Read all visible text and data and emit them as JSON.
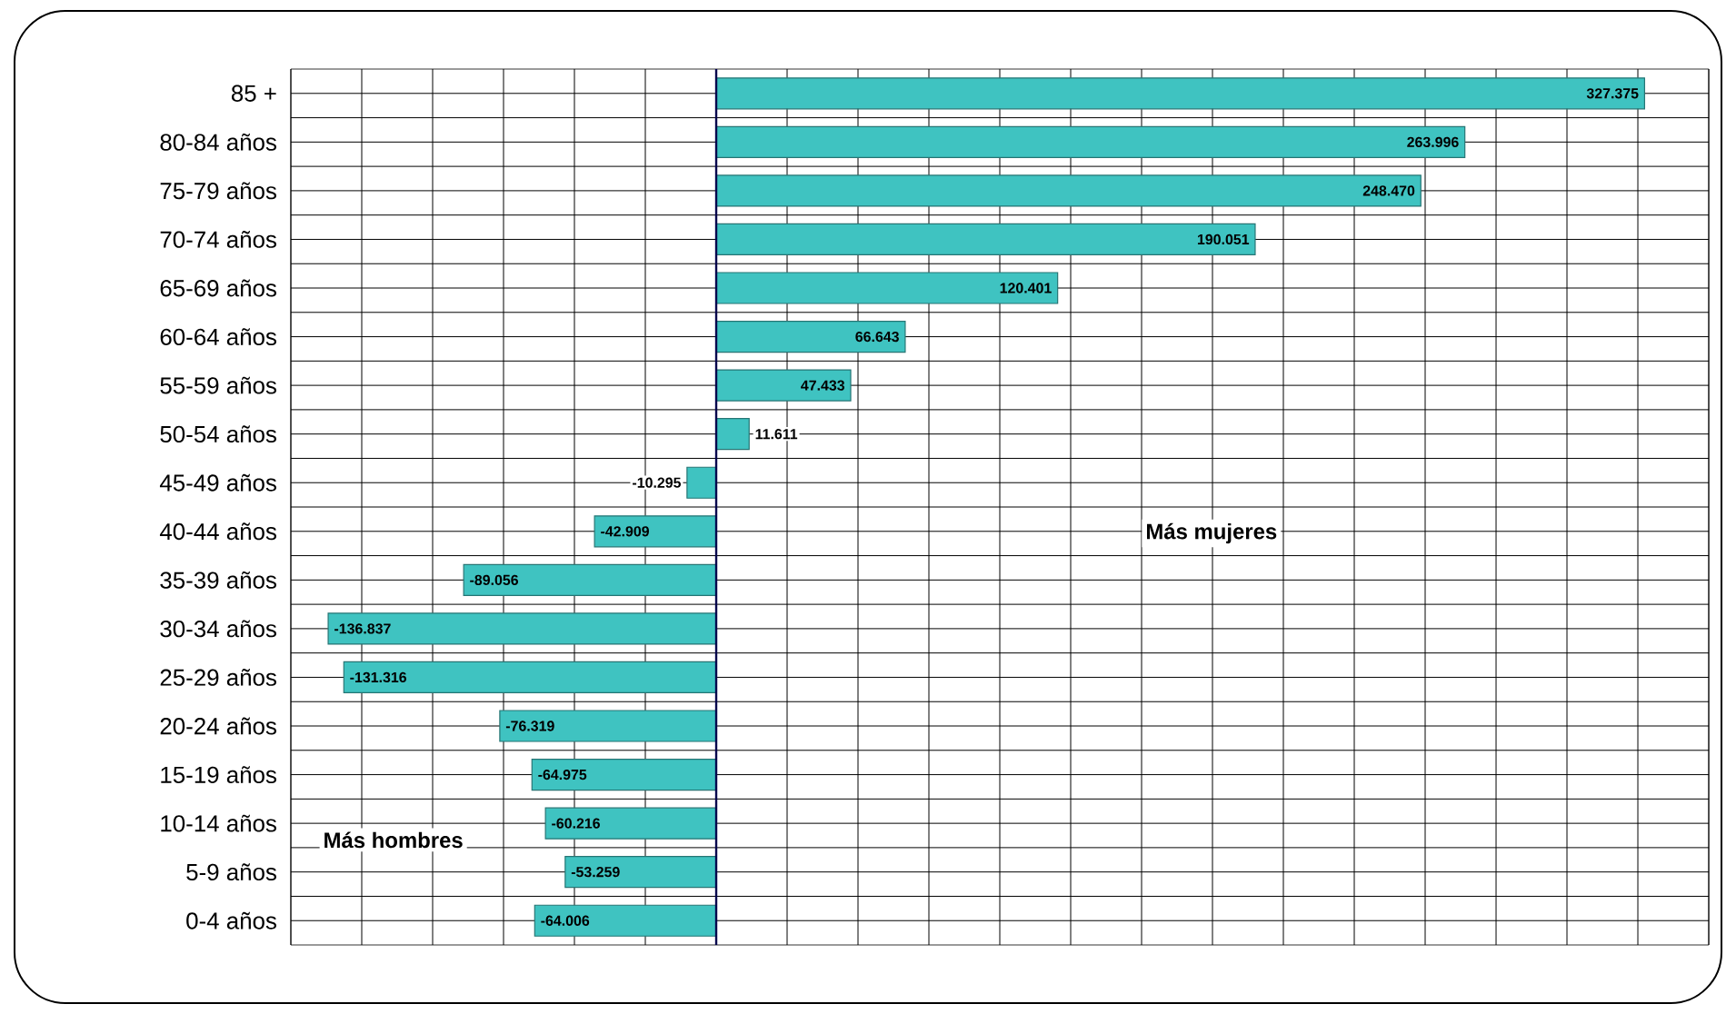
{
  "chart_data": {
    "type": "bar",
    "orientation": "horizontal",
    "categories": [
      "85 +",
      "80-84 años",
      "75-79 años",
      "70-74 años",
      "65-69 años",
      "60-64 años",
      "55-59 años",
      "50-54 años",
      "45-49 años",
      "40-44 años",
      "35-39 años",
      "30-34 años",
      "25-29 años",
      "20-24 años",
      "15-19 años",
      "10-14 años",
      "5-9 años",
      "0-4 años"
    ],
    "values": [
      327375,
      263996,
      248470,
      190051,
      120401,
      66643,
      47433,
      11611,
      -10295,
      -42909,
      -89056,
      -136837,
      -131316,
      -76319,
      -64975,
      -60216,
      -53259,
      -64006
    ],
    "value_labels": [
      "327.375",
      "263.996",
      "248.470",
      "190.051",
      "120.401",
      "66.643",
      "47.433",
      "11.611",
      "-10.295",
      "-42.909",
      "-89.056",
      "-136.837",
      "-131.316",
      "-76.319",
      "-64.975",
      "-60.216",
      "-53.259",
      "-64.006"
    ],
    "color": "#3fc3c1",
    "xlim": [
      -150000,
      350000
    ],
    "xticks": [
      {
        "value": -150000,
        "label": null
      },
      {
        "value": -125000,
        "label": null
      },
      {
        "value": -100000,
        "label": null
      },
      {
        "value": -75000,
        "label": null
      },
      {
        "value": -50000,
        "label": null
      },
      {
        "value": -25000,
        "label": null
      },
      {
        "value": 0,
        "label": null
      },
      {
        "value": 25000,
        "label": null
      },
      {
        "value": 50000,
        "label": null
      },
      {
        "value": 75000,
        "label": null
      },
      {
        "value": 100000,
        "label": null
      },
      {
        "value": 125000,
        "label": null
      },
      {
        "value": 150000,
        "label": null
      },
      {
        "value": 175000,
        "label": null
      },
      {
        "value": 200000,
        "label": null
      },
      {
        "value": 225000,
        "label": null
      },
      {
        "value": 250000,
        "label": null
      },
      {
        "value": 275000,
        "label": null
      },
      {
        "value": 300000,
        "label": null
      },
      {
        "value": 325000,
        "label": null
      },
      {
        "value": 350000,
        "label": null
      }
    ],
    "tick_labels": "y",
    "grid": true,
    "annotations": [
      "Más hombres",
      "Más mujeres"
    ]
  }
}
